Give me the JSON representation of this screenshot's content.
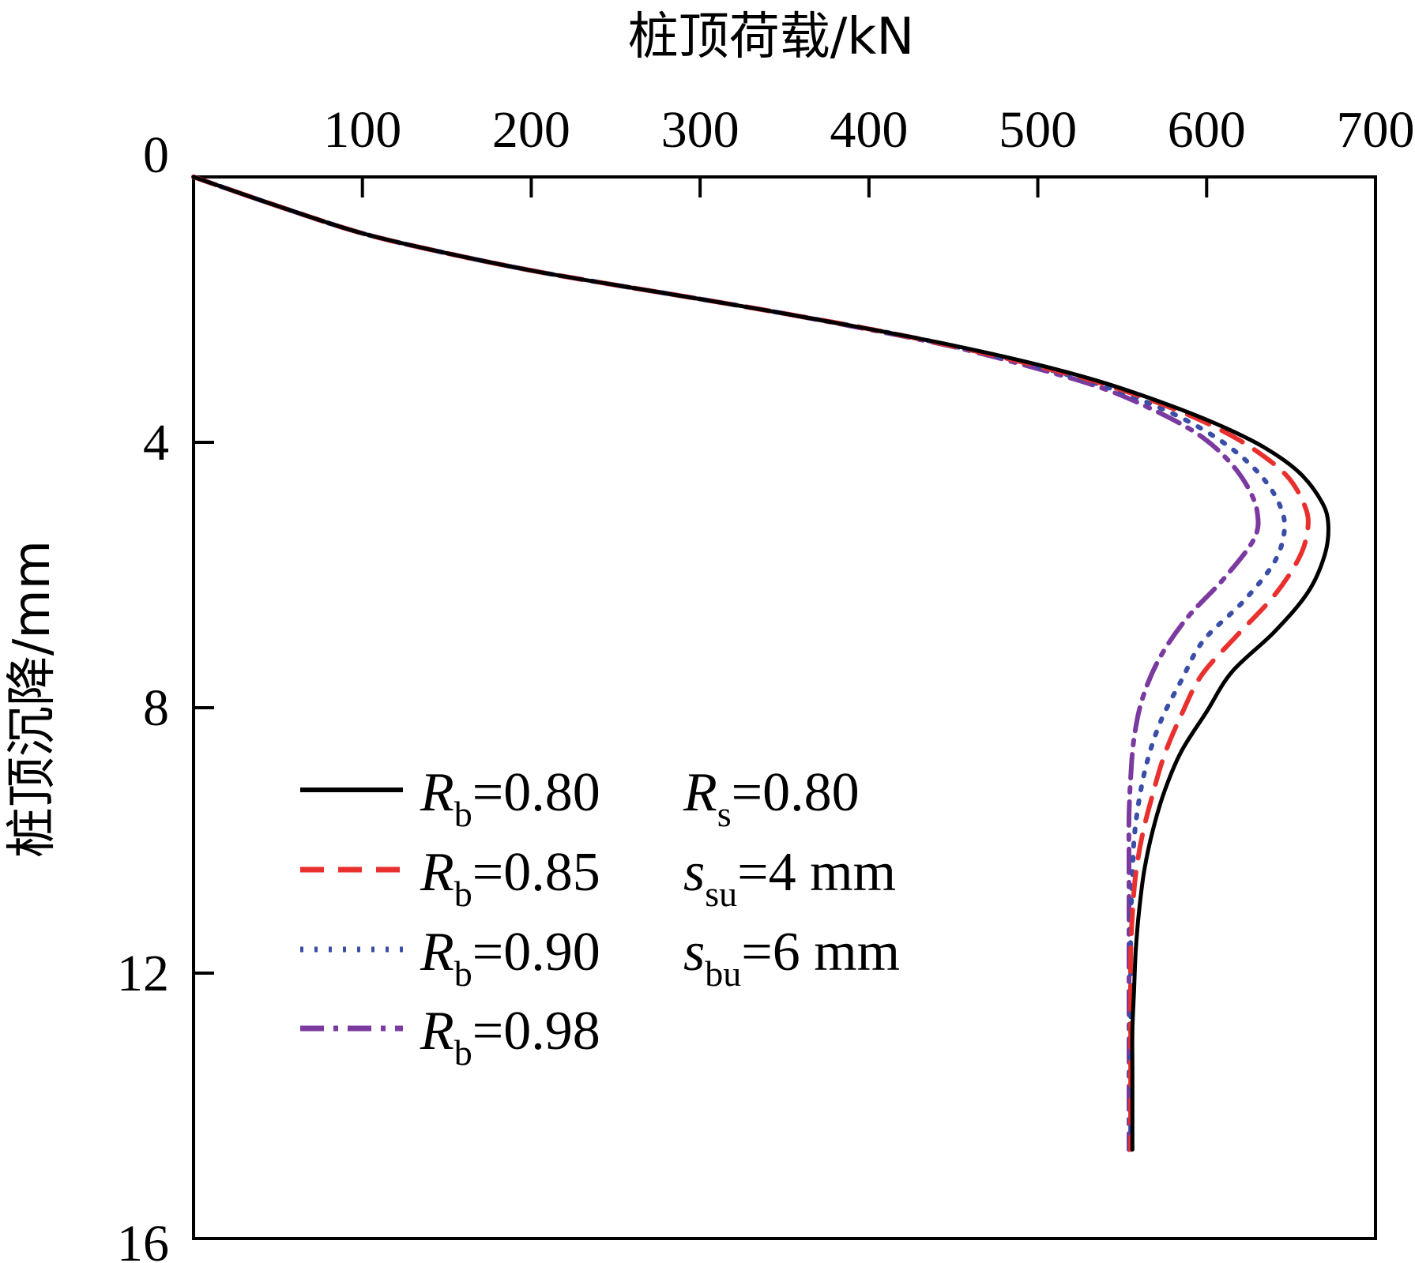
{
  "chart_data": {
    "type": "line",
    "x_axis_title": "桩顶荷载/kN",
    "y_axis_title": "桩顶沉降/mm",
    "x_ticks": [
      100,
      200,
      300,
      400,
      500,
      600,
      700
    ],
    "y_ticks": [
      0,
      4,
      8,
      12,
      16
    ],
    "x_range": [
      0,
      700
    ],
    "y_range": [
      0,
      16
    ],
    "y_inverted": true,
    "x_axis_position": "top",
    "grid": false,
    "legend_position": "lower-left",
    "series": [
      {
        "name_main": "R",
        "name_sub": "b",
        "name_value": "=0.80",
        "color": "#000000",
        "dash": "none",
        "width": 5,
        "points": [
          [
            0,
            0
          ],
          [
            50,
            0.44
          ],
          [
            100,
            0.85
          ],
          [
            150,
            1.15
          ],
          [
            200,
            1.41
          ],
          [
            250,
            1.63
          ],
          [
            300,
            1.84
          ],
          [
            350,
            2.06
          ],
          [
            400,
            2.29
          ],
          [
            450,
            2.54
          ],
          [
            500,
            2.83
          ],
          [
            540,
            3.11
          ],
          [
            580,
            3.46
          ],
          [
            610,
            3.77
          ],
          [
            635,
            4.09
          ],
          [
            655,
            4.46
          ],
          [
            668,
            4.89
          ],
          [
            672,
            5.23
          ],
          [
            670,
            5.69
          ],
          [
            660,
            6.26
          ],
          [
            640,
            6.86
          ],
          [
            615,
            7.46
          ],
          [
            600,
            8.06
          ],
          [
            585,
            8.66
          ],
          [
            575,
            9.26
          ],
          [
            568,
            9.86
          ],
          [
            563,
            10.46
          ],
          [
            560,
            11.06
          ],
          [
            558,
            11.66
          ],
          [
            557,
            12.26
          ],
          [
            556,
            12.86
          ],
          [
            556,
            13.46
          ],
          [
            556,
            14.1
          ],
          [
            556,
            14.66
          ]
        ]
      },
      {
        "name_main": "R",
        "name_sub": "b",
        "name_value": "=0.85",
        "color": "#e8312f",
        "dash": "30,18",
        "width": 6,
        "points": [
          [
            0,
            0
          ],
          [
            50,
            0.44
          ],
          [
            100,
            0.85
          ],
          [
            150,
            1.15
          ],
          [
            200,
            1.41
          ],
          [
            250,
            1.63
          ],
          [
            300,
            1.84
          ],
          [
            350,
            2.06
          ],
          [
            400,
            2.29
          ],
          [
            450,
            2.55
          ],
          [
            500,
            2.85
          ],
          [
            540,
            3.13
          ],
          [
            580,
            3.49
          ],
          [
            608,
            3.81
          ],
          [
            630,
            4.14
          ],
          [
            648,
            4.52
          ],
          [
            658,
            4.95
          ],
          [
            660,
            5.28
          ],
          [
            655,
            5.73
          ],
          [
            640,
            6.31
          ],
          [
            618,
            6.91
          ],
          [
            597,
            7.51
          ],
          [
            585,
            8.11
          ],
          [
            575,
            8.71
          ],
          [
            568,
            9.31
          ],
          [
            562,
            9.91
          ],
          [
            558,
            10.51
          ],
          [
            556,
            11.11
          ],
          [
            555,
            11.71
          ],
          [
            555,
            12.31
          ],
          [
            555,
            12.91
          ],
          [
            555,
            13.51
          ],
          [
            555,
            14.11
          ],
          [
            555,
            14.66
          ]
        ]
      },
      {
        "name_main": "R",
        "name_sub": "b",
        "name_value": "=0.90",
        "color": "#3a4ea8",
        "dash": "4,14",
        "width": 6,
        "points": [
          [
            0,
            0
          ],
          [
            50,
            0.44
          ],
          [
            100,
            0.85
          ],
          [
            150,
            1.15
          ],
          [
            200,
            1.41
          ],
          [
            250,
            1.63
          ],
          [
            300,
            1.84
          ],
          [
            350,
            2.06
          ],
          [
            400,
            2.29
          ],
          [
            450,
            2.55
          ],
          [
            500,
            2.86
          ],
          [
            540,
            3.16
          ],
          [
            575,
            3.51
          ],
          [
            600,
            3.84
          ],
          [
            620,
            4.2
          ],
          [
            635,
            4.59
          ],
          [
            644,
            4.99
          ],
          [
            646,
            5.34
          ],
          [
            640,
            5.81
          ],
          [
            622,
            6.39
          ],
          [
            598,
            6.99
          ],
          [
            585,
            7.59
          ],
          [
            573,
            8.19
          ],
          [
            565,
            8.79
          ],
          [
            560,
            9.39
          ],
          [
            557,
            9.99
          ],
          [
            556,
            10.59
          ],
          [
            555,
            11.19
          ],
          [
            555,
            11.79
          ],
          [
            555,
            12.39
          ],
          [
            555,
            12.99
          ],
          [
            555,
            13.59
          ],
          [
            555,
            14.19
          ],
          [
            555,
            14.66
          ]
        ]
      },
      {
        "name_main": "R",
        "name_sub": "b",
        "name_value": "=0.98",
        "color": "#7b3aa0",
        "dash": "30,12,6,12",
        "width": 6,
        "points": [
          [
            0,
            0
          ],
          [
            50,
            0.44
          ],
          [
            100,
            0.85
          ],
          [
            150,
            1.15
          ],
          [
            200,
            1.41
          ],
          [
            250,
            1.63
          ],
          [
            300,
            1.84
          ],
          [
            350,
            2.06
          ],
          [
            400,
            2.3
          ],
          [
            450,
            2.56
          ],
          [
            500,
            2.89
          ],
          [
            540,
            3.2
          ],
          [
            570,
            3.53
          ],
          [
            595,
            3.88
          ],
          [
            612,
            4.25
          ],
          [
            624,
            4.66
          ],
          [
            630,
            5.06
          ],
          [
            628,
            5.46
          ],
          [
            610,
            6.06
          ],
          [
            588,
            6.66
          ],
          [
            572,
            7.26
          ],
          [
            562,
            7.86
          ],
          [
            557,
            8.46
          ],
          [
            555,
            9.06
          ],
          [
            554,
            9.66
          ],
          [
            554,
            10.26
          ],
          [
            554,
            10.86
          ],
          [
            554,
            11.46
          ],
          [
            554,
            12.06
          ],
          [
            554,
            12.66
          ],
          [
            554,
            13.26
          ],
          [
            554,
            13.86
          ],
          [
            554,
            14.66
          ]
        ]
      }
    ],
    "legend_params": [
      {
        "main": "R",
        "sub": "s",
        "value": "=0.80",
        "italic": true
      },
      {
        "main": "s",
        "sub": "su",
        "value": "=4 mm",
        "italic": true
      },
      {
        "main": "s",
        "sub": "bu",
        "value": "=6 mm",
        "italic": true
      }
    ]
  }
}
